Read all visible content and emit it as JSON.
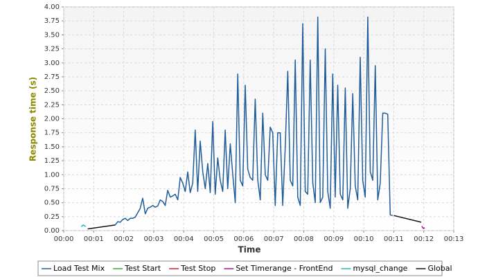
{
  "chart_data": {
    "type": "line",
    "x_label": "Time",
    "y_label": "Response time (s)",
    "xlim": [
      0,
      780
    ],
    "xticks": [
      {
        "value": 0,
        "label": "00:00"
      },
      {
        "value": 60,
        "label": "00:01"
      },
      {
        "value": 120,
        "label": "00:02"
      },
      {
        "value": 180,
        "label": "00:03"
      },
      {
        "value": 240,
        "label": "00:04"
      },
      {
        "value": 300,
        "label": "00:05"
      },
      {
        "value": 360,
        "label": "00:06"
      },
      {
        "value": 420,
        "label": "00:07"
      },
      {
        "value": 480,
        "label": "00:08"
      },
      {
        "value": 540,
        "label": "00:09"
      },
      {
        "value": 600,
        "label": "00:10"
      },
      {
        "value": 660,
        "label": "00:11"
      },
      {
        "value": 720,
        "label": "00:12"
      },
      {
        "value": 780,
        "label": "00:13"
      }
    ],
    "ylim": [
      0,
      4
    ],
    "yticks": [
      {
        "value": 0,
        "label": "0.00"
      },
      0.25,
      {
        "value": 0.5,
        "label": "0.50"
      },
      0.75,
      {
        "value": 1,
        "label": "1.00"
      },
      1.25,
      {
        "value": 1.5,
        "label": "1.50"
      },
      1.75,
      {
        "value": 2,
        "label": "2.00"
      },
      2.25,
      {
        "value": 2.5,
        "label": "2.50"
      },
      2.75,
      {
        "value": 3,
        "label": "3.00"
      },
      3.25,
      {
        "value": 3.5,
        "label": "3.50"
      },
      3.75,
      {
        "value": 4,
        "label": "4.00"
      }
    ],
    "grid": true,
    "legend": "bottom",
    "series": [
      {
        "name": "Load Test Mix",
        "color": "#1f5c99",
        "x": [
          103,
          108,
          113,
          118,
          123,
          128,
          133,
          138,
          143,
          148,
          153,
          158,
          163,
          168,
          173,
          178,
          183,
          188,
          193,
          198,
          203,
          208,
          213,
          218,
          223,
          228,
          233,
          238,
          243,
          248,
          253,
          258,
          263,
          268,
          273,
          278,
          283,
          288,
          293,
          298,
          303,
          308,
          313,
          318,
          323,
          328,
          333,
          338,
          343,
          348,
          353,
          358,
          363,
          368,
          373,
          378,
          383,
          388,
          393,
          398,
          403,
          408,
          413,
          418,
          423,
          428,
          433,
          438,
          443,
          448,
          453,
          458,
          463,
          468,
          473,
          478,
          483,
          488,
          493,
          498,
          503,
          508,
          513,
          518,
          523,
          528,
          533,
          538,
          543,
          548,
          553,
          558,
          563,
          568,
          573,
          578,
          583,
          588,
          593,
          598,
          603,
          608,
          613,
          618,
          623,
          628,
          633,
          638,
          643,
          648,
          653,
          658
        ],
        "values": [
          0.1,
          0.16,
          0.15,
          0.2,
          0.22,
          0.18,
          0.22,
          0.22,
          0.24,
          0.32,
          0.4,
          0.58,
          0.3,
          0.4,
          0.42,
          0.45,
          0.42,
          0.44,
          0.55,
          0.52,
          0.45,
          0.72,
          0.6,
          0.62,
          0.65,
          0.55,
          0.95,
          0.85,
          0.7,
          1.05,
          0.68,
          0.85,
          1.8,
          0.7,
          1.6,
          1.05,
          0.75,
          1.2,
          0.68,
          1.95,
          0.65,
          1.3,
          0.9,
          0.7,
          1.8,
          0.75,
          1.55,
          1.0,
          0.5,
          2.8,
          0.9,
          0.8,
          2.6,
          1.1,
          0.95,
          0.9,
          2.35,
          0.9,
          0.55,
          2.1,
          1.0,
          0.9,
          1.85,
          1.75,
          0.45,
          1.75,
          1.75,
          0.45,
          1.5,
          2.85,
          0.9,
          0.8,
          3.05,
          0.6,
          0.45,
          3.7,
          0.7,
          0.65,
          3.05,
          0.85,
          0.5,
          3.82,
          0.5,
          0.6,
          3.25,
          0.7,
          0.4,
          2.8,
          0.6,
          2.6,
          0.65,
          0.55,
          2.55,
          0.4,
          0.75,
          2.45,
          0.8,
          0.55,
          3.1,
          0.9,
          0.6,
          3.82,
          1.05,
          0.9,
          2.95,
          0.55,
          0.85,
          2.1,
          2.1,
          2.08,
          0.28,
          0.27
        ]
      },
      {
        "name": "Test Start",
        "color": "#33aa33",
        "x": [
          36,
          38
        ],
        "values": [
          0.08,
          0.09
        ]
      },
      {
        "name": "Test Stop",
        "color": "#cc2222",
        "x": [
          720,
          721
        ],
        "values": [
          0.05,
          0.05
        ]
      },
      {
        "name": "Set Timerange - FrontEnd",
        "color": "#aa1199",
        "x": [
          716,
          719,
          722
        ],
        "values": [
          0.08,
          0.04,
          0.05
        ]
      },
      {
        "name": "mysql_change",
        "color": "#22bbbb",
        "x": [
          35,
          39,
          44
        ],
        "values": [
          0.07,
          0.1,
          0.07
        ]
      },
      {
        "name": "Global",
        "color": "#111111",
        "x": [
          48,
          103,
          104,
          660,
          715
        ],
        "values": [
          0.03,
          0.1,
          null,
          0.27,
          0.15
        ]
      }
    ]
  }
}
